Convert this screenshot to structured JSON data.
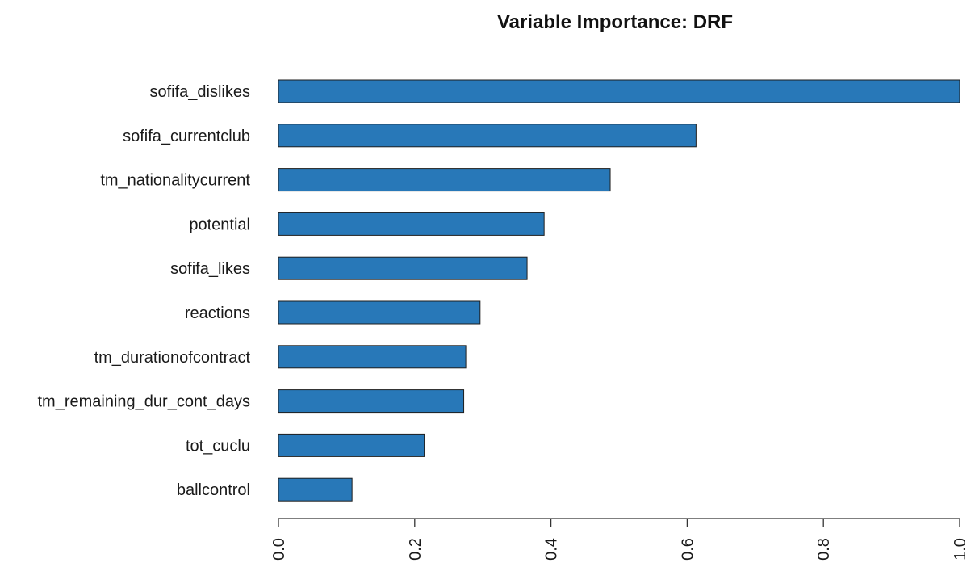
{
  "chart_data": {
    "type": "bar",
    "orientation": "horizontal",
    "title": "Variable Importance: DRF",
    "xlabel": "",
    "ylabel": "",
    "categories": [
      "sofifa_dislikes",
      "sofifa_currentclub",
      "tm_nationalitycurrent",
      "potential",
      "sofifa_likes",
      "reactions",
      "tm_durationofcontract",
      "tm_remaining_dur_cont_days",
      "tot_cuclu",
      "ballcontrol"
    ],
    "values": [
      1.0,
      0.613,
      0.487,
      0.39,
      0.365,
      0.296,
      0.275,
      0.272,
      0.214,
      0.108
    ],
    "xlim": [
      0,
      1.0
    ],
    "x_ticks": [
      "0.0",
      "0.2",
      "0.4",
      "0.6",
      "0.8",
      "1.0"
    ],
    "x_tick_values": [
      0,
      0.2,
      0.4,
      0.6,
      0.8,
      1.0
    ],
    "grid": false,
    "legend": "none",
    "bar_color": "#2878b8",
    "bar_edge_color": "#1e1e1e"
  }
}
